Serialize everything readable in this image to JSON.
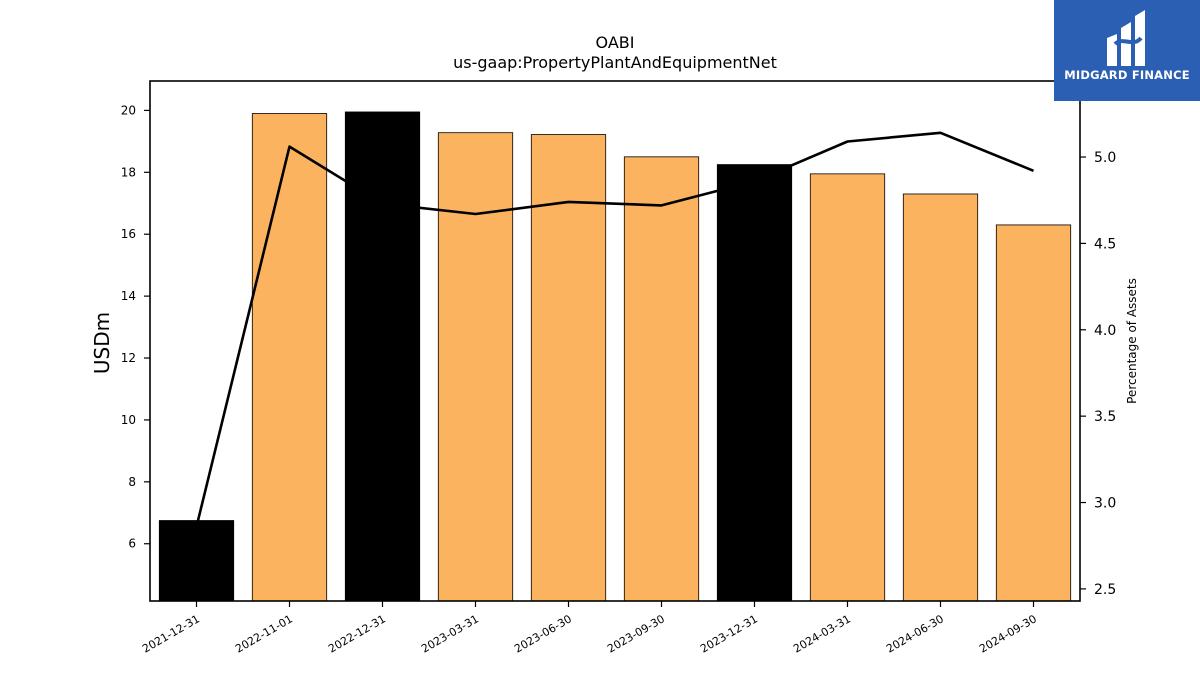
{
  "chart_data": {
    "type": "bar",
    "title": "OABI",
    "subtitle": "us-gaap:PropertyPlantAndEquipmentNet",
    "ylabel": "USDm",
    "ylabel_right": "Percentage of Assets",
    "categories": [
      "2021-12-31",
      "2022-11-01",
      "2022-12-31",
      "2023-03-31",
      "2023-06-30",
      "2023-09-30",
      "2023-12-31",
      "2024-03-31",
      "2024-06-30",
      "2024-09-30"
    ],
    "series": [
      {
        "type": "bar",
        "values": [
          6.75,
          19.9,
          19.95,
          19.28,
          19.22,
          18.5,
          18.25,
          17.95,
          17.3,
          16.3
        ],
        "colors": [
          "#000000",
          "#fbb360",
          "#000000",
          "#fbb360",
          "#fbb360",
          "#fbb360",
          "#000000",
          "#fbb360",
          "#fbb360",
          "#fbb360"
        ]
      },
      {
        "type": "line",
        "axis": "right",
        "color": "#000000",
        "values": [
          2.86,
          5.06,
          4.73,
          4.67,
          4.74,
          4.72,
          4.86,
          5.09,
          5.14,
          4.92
        ]
      }
    ],
    "ylim": [
      4.15,
      20.95
    ],
    "yticks": [
      "6",
      "8",
      "10",
      "12",
      "14",
      "16",
      "18",
      "20"
    ],
    "y2lim": [
      2.43,
      5.44
    ],
    "y2ticks": [
      "2.5",
      "3.0",
      "3.5",
      "4.0",
      "4.5",
      "5.0"
    ],
    "grid": false,
    "legend": "none"
  },
  "logo": {
    "text": "MIDGARD FINANCE",
    "background": "#2b5fb3"
  }
}
